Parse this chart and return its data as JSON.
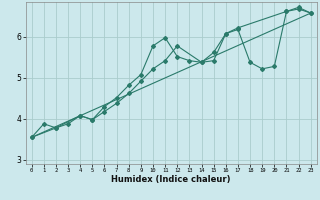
{
  "title": "",
  "xlabel": "Humidex (Indice chaleur)",
  "bg_color": "#cce8ec",
  "grid_color": "#aacccc",
  "line_color": "#2a7a6a",
  "xlim": [
    -0.5,
    23.5
  ],
  "ylim": [
    2.9,
    6.85
  ],
  "yticks": [
    3,
    4,
    5,
    6
  ],
  "xticks": [
    0,
    1,
    2,
    3,
    4,
    5,
    6,
    7,
    8,
    9,
    10,
    11,
    12,
    13,
    14,
    15,
    16,
    17,
    18,
    19,
    20,
    21,
    22,
    23
  ],
  "line1_x": [
    0,
    1,
    2,
    3,
    4,
    5,
    6,
    7,
    8,
    9,
    10,
    11,
    12,
    13,
    14,
    15,
    16,
    17,
    18,
    19,
    20,
    21,
    22,
    23
  ],
  "line1_y": [
    3.55,
    3.88,
    3.78,
    3.88,
    4.08,
    3.98,
    4.3,
    4.52,
    4.82,
    5.08,
    5.78,
    5.98,
    5.52,
    5.42,
    5.38,
    5.62,
    6.08,
    6.18,
    5.38,
    5.22,
    5.28,
    6.62,
    6.68,
    6.58
  ],
  "line2_x": [
    0,
    2,
    4,
    5,
    6,
    7,
    8,
    9,
    10,
    11,
    12,
    14,
    15,
    16,
    17,
    21,
    22,
    23
  ],
  "line2_y": [
    3.55,
    3.78,
    4.08,
    3.98,
    4.18,
    4.38,
    4.62,
    4.92,
    5.22,
    5.42,
    5.78,
    5.38,
    5.42,
    6.08,
    6.22,
    6.62,
    6.72,
    6.58
  ],
  "line3_x": [
    0,
    23
  ],
  "line3_y": [
    3.55,
    6.58
  ]
}
